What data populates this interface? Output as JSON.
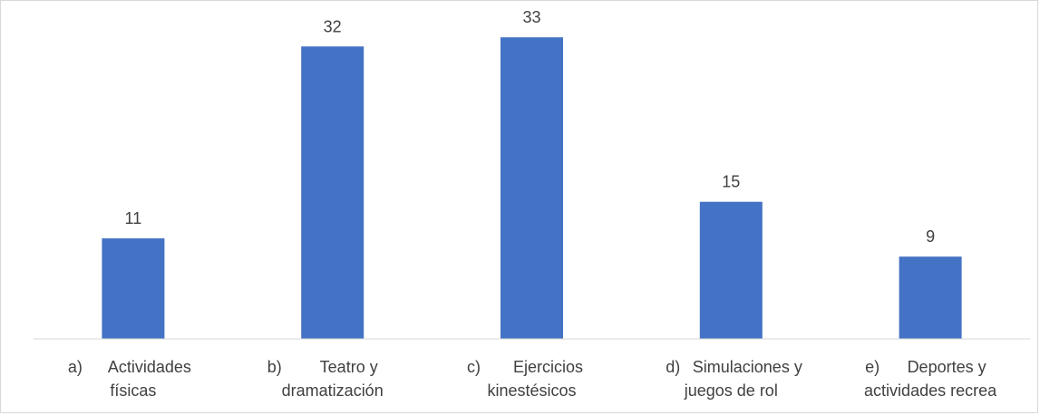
{
  "chart_data": {
    "type": "bar",
    "title": "",
    "xlabel": "",
    "ylabel": "",
    "categories": [
      [
        "a)",
        "Actividades",
        "físicas"
      ],
      [
        "b)",
        "Teatro y",
        "dramatización"
      ],
      [
        "c)",
        "Ejercicios",
        "kinestésicos"
      ],
      [
        "d)",
        "Simulaciones y",
        "juegos de rol"
      ],
      [
        "e)",
        "Deportes y",
        "actividades recrea"
      ]
    ],
    "values": [
      11,
      32,
      33,
      15,
      9
    ],
    "data_labels": [
      "11",
      "32",
      "33",
      "15",
      "9"
    ],
    "ylim": [
      0,
      35
    ],
    "grid": false,
    "legend": "none",
    "bar_color": "#4472c4"
  }
}
